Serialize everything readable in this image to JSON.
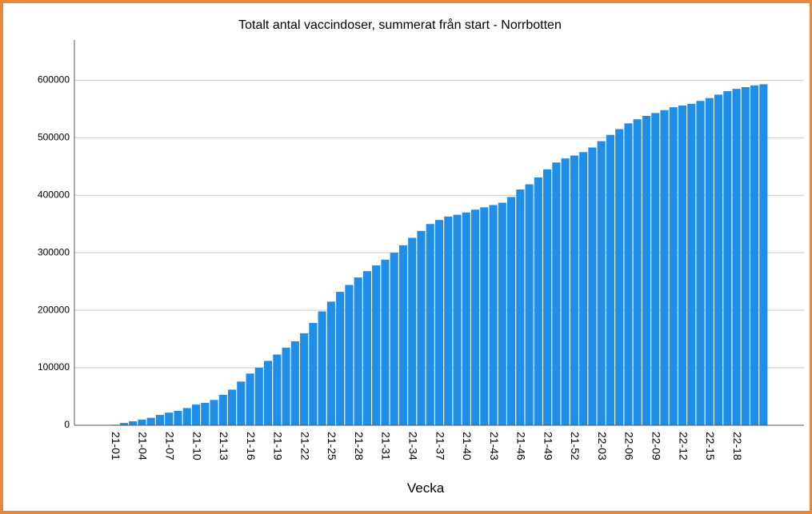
{
  "chart_data": {
    "type": "bar",
    "title": "Totalt antal vaccindoser, summerat från start - Norrbotten",
    "x_label": "Vecka",
    "categories": [
      null,
      null,
      null,
      null,
      "21-01",
      null,
      null,
      "21-04",
      null,
      null,
      "21-07",
      null,
      null,
      "21-10",
      null,
      null,
      "21-13",
      null,
      null,
      "21-16",
      null,
      null,
      "21-19",
      null,
      null,
      "21-22",
      null,
      null,
      "21-25",
      null,
      null,
      "21-28",
      null,
      null,
      "21-31",
      null,
      null,
      "21-34",
      null,
      null,
      "21-37",
      null,
      null,
      "21-40",
      null,
      null,
      "21-43",
      null,
      null,
      "21-46",
      null,
      null,
      "21-49",
      null,
      null,
      "21-52",
      null,
      null,
      "22-03",
      null,
      null,
      "22-06",
      null,
      null,
      "22-09",
      null,
      null,
      "22-12",
      null,
      null,
      "22-15",
      null,
      null,
      "22-18",
      null,
      null,
      null,
      null,
      null,
      null,
      null
    ],
    "values": [
      null,
      null,
      null,
      null,
      1000,
      4000,
      7000,
      10000,
      13000,
      18000,
      22000,
      25000,
      30000,
      36000,
      39000,
      44000,
      53000,
      62000,
      76000,
      90000,
      100000,
      112000,
      123000,
      135000,
      146000,
      160000,
      178000,
      198000,
      215000,
      232000,
      244000,
      257000,
      268000,
      278000,
      288000,
      300000,
      313000,
      326000,
      338000,
      350000,
      357000,
      363000,
      366000,
      370000,
      375000,
      379000,
      383000,
      387000,
      397000,
      410000,
      419000,
      431000,
      445000,
      457000,
      464000,
      469000,
      475000,
      483000,
      494000,
      505000,
      515000,
      525000,
      532000,
      538000,
      543000,
      548000,
      553000,
      556000,
      559000,
      564000,
      569000,
      575000,
      581000,
      585000,
      588000,
      591000,
      593000,
      null,
      null,
      null,
      null
    ],
    "color": "#1e8ee8",
    "ylim": [
      0,
      670000
    ],
    "yticks": [
      0,
      100000,
      200000,
      300000,
      400000,
      500000,
      600000
    ],
    "grid": true
  }
}
